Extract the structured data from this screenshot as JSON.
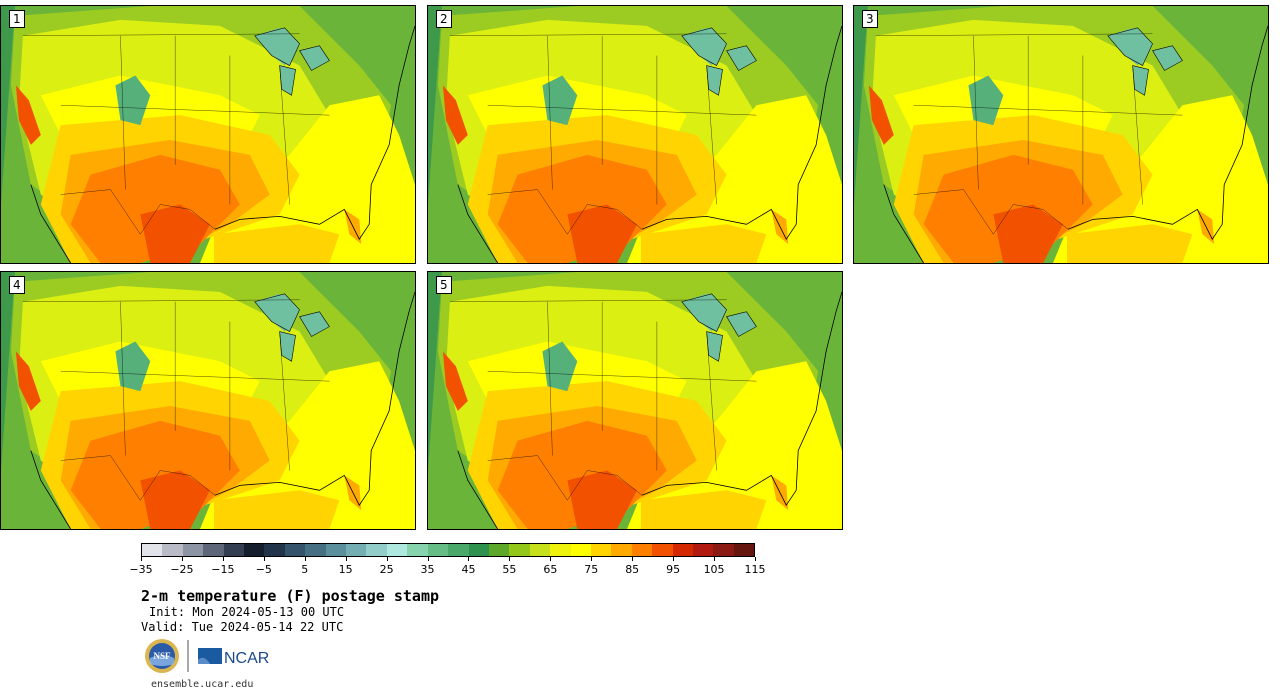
{
  "panels": [
    {
      "label": "1"
    },
    {
      "label": "2"
    },
    {
      "label": "3"
    },
    {
      "label": "4"
    },
    {
      "label": "5"
    }
  ],
  "colorbar": {
    "colors": [
      "#e3e3ea",
      "#b9bcc6",
      "#8d94a3",
      "#5e6779",
      "#333e52",
      "#141e2d",
      "#22344a",
      "#35536b",
      "#466f84",
      "#5a8f9b",
      "#75aeb2",
      "#93cdc9",
      "#aee8de",
      "#86d3ae",
      "#66bd86",
      "#4aa86a",
      "#2f914e",
      "#5da72a",
      "#93c81b",
      "#c6e019",
      "#eef20d",
      "#ffff00",
      "#ffd400",
      "#ffaa00",
      "#ff7f00",
      "#f25200",
      "#d42800",
      "#b01a0f",
      "#8c1a14",
      "#64160f"
    ],
    "tick_labels": [
      "−35",
      "−25",
      "−15",
      "−5",
      "5",
      "15",
      "25",
      "35",
      "45",
      "55",
      "65",
      "75",
      "85",
      "95",
      "105",
      "115"
    ]
  },
  "title": "2-m temperature (F) postage stamp",
  "init": "Init: Mon 2024-05-13 00 UTC",
  "valid": "Valid: Tue 2024-05-14 22 UTC",
  "logos": {
    "nsf": "NSF",
    "ncar": "NCAR"
  },
  "footer": "ensemble.ucar.edu"
}
